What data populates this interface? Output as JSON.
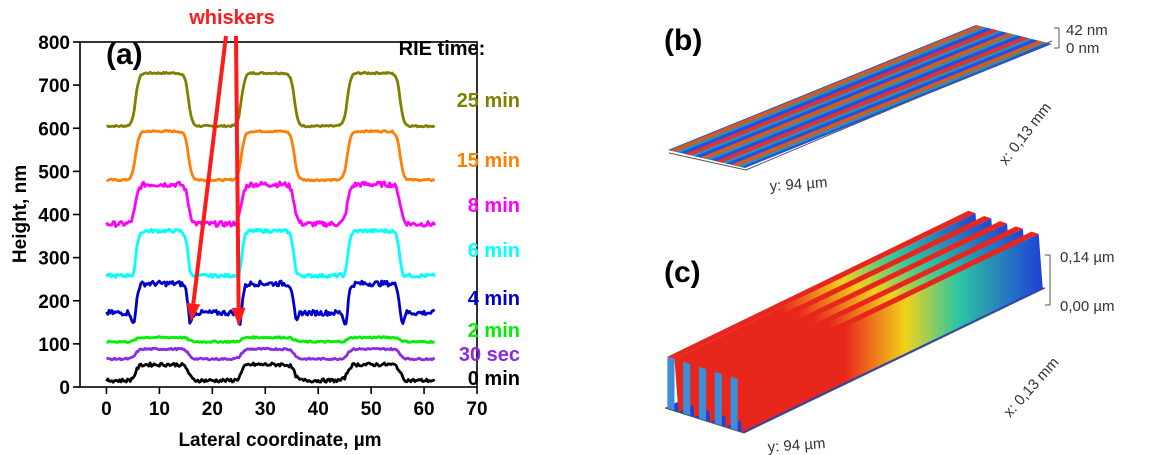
{
  "panels": {
    "a": "(a)",
    "b": "(b)",
    "c": "(c)"
  },
  "chart_data": {
    "type": "line",
    "title": "",
    "xlabel": "Lateral coordinate, µm",
    "ylabel": "Height, nm",
    "xlim": [
      -5,
      70
    ],
    "ylim": [
      0,
      800
    ],
    "xticks": [
      0,
      10,
      20,
      30,
      40,
      50,
      60,
      70
    ],
    "yticks": [
      0,
      100,
      200,
      300,
      400,
      500,
      600,
      700,
      800
    ],
    "grid": false,
    "legend_title": "RIE time:",
    "annotation": {
      "text": "whiskers",
      "color": "#ff1a1a",
      "arrows_to": [
        [
          16,
          175
        ],
        [
          25,
          165
        ]
      ]
    },
    "series": [
      {
        "name": "25 min",
        "color": "#808000",
        "base": 605,
        "top": 728,
        "dip": 0,
        "noise": 2,
        "mid": 0
      },
      {
        "name": "15 min",
        "color": "#ff8000",
        "base": 480,
        "top": 593,
        "dip": 0,
        "noise": 2,
        "mid": 0
      },
      {
        "name": "8 min",
        "color": "#ff00ff",
        "base": 378,
        "top": 470,
        "dip": 0,
        "noise": 6,
        "mid": 0
      },
      {
        "name": "6 min",
        "color": "#00ffff",
        "base": 258,
        "top": 362,
        "dip": 20,
        "noise": 4,
        "mid": 10
      },
      {
        "name": "4 min",
        "color": "#0000cc",
        "base": 172,
        "top": 240,
        "dip": 45,
        "noise": 6,
        "mid": 0
      },
      {
        "name": "2 min",
        "color": "#00ee00",
        "base": 105,
        "top": 115,
        "dip": 0,
        "noise": 2,
        "mid": 0
      },
      {
        "name": "30 sec",
        "color": "#8a2be2",
        "base": 65,
        "top": 88,
        "dip": 0,
        "noise": 2,
        "mid": 0
      },
      {
        "name": "0 min",
        "color": "#000000",
        "base": 15,
        "top": 52,
        "dip": 0,
        "noise": 4,
        "mid": 0
      }
    ]
  },
  "afm_b": {
    "scale_top": "42 nm",
    "scale_bottom": "0 nm",
    "x_label": "x: 0,13 mm",
    "y_label": "y: 94 µm"
  },
  "afm_c": {
    "scale_top": "0,14 µm",
    "scale_bottom": "0,00 µm",
    "x_label": "x: 0,13 mm",
    "y_label": "y: 94 µm"
  },
  "colors": {
    "afm_low": "#1f3fd6",
    "afm_mid": "#2ec8a0",
    "afm_high_b": "#e0521a",
    "afm_high_c": "#e8261c"
  }
}
